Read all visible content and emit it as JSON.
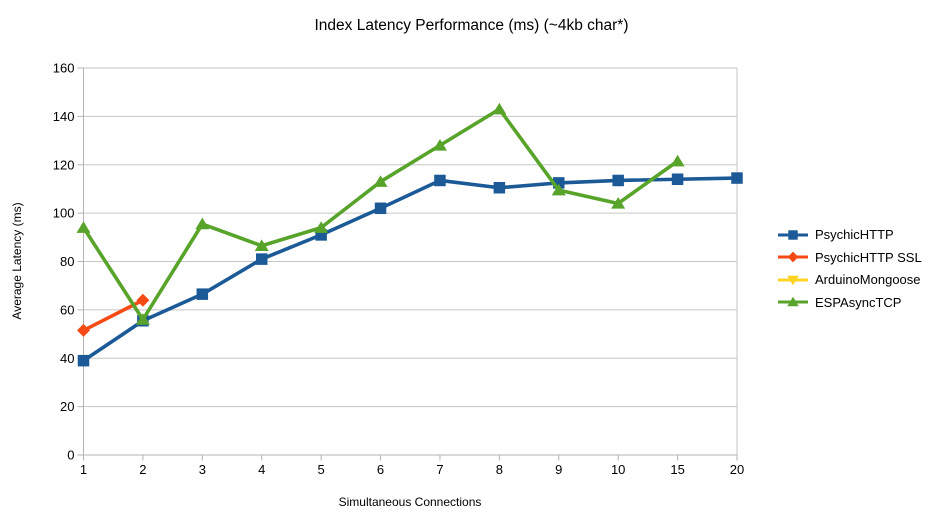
{
  "page": {
    "background": "#ffffff"
  },
  "chart_data": {
    "type": "line",
    "title": "Index Latency Performance (ms) (~4kb char*)",
    "xlabel": "Simultaneous Connections",
    "ylabel": "Average Latency (ms)",
    "categories": [
      "1",
      "2",
      "3",
      "4",
      "5",
      "6",
      "7",
      "8",
      "9",
      "10",
      "15",
      "20"
    ],
    "y_ticks": [
      0,
      20,
      40,
      60,
      80,
      100,
      120,
      140,
      160
    ],
    "ylim": [
      0,
      160
    ],
    "grid": "horizontal-only",
    "legend_position": "right",
    "series": [
      {
        "name": "PsychicHTTP",
        "color": "#1b5a97",
        "marker": "square",
        "values": [
          39,
          55.5,
          66.5,
          81,
          91,
          102,
          113.5,
          110.5,
          112.5,
          113.5,
          114,
          114.5
        ]
      },
      {
        "name": "PsychicHTTP SSL",
        "color": "#f64a14",
        "marker": "diamond",
        "values": [
          51.5,
          64,
          null,
          null,
          null,
          null,
          null,
          null,
          null,
          null,
          null,
          null
        ]
      },
      {
        "name": "ArduinoMongoose",
        "color": "#ffd322",
        "marker": "triangle-down",
        "values": [
          null,
          null,
          null,
          null,
          null,
          null,
          null,
          null,
          null,
          null,
          null,
          null
        ]
      },
      {
        "name": "ESPAsyncTCP",
        "color": "#58a32a",
        "marker": "triangle-up",
        "values": [
          94,
          56,
          95.5,
          86.5,
          94,
          113,
          128,
          143,
          109.5,
          104,
          121.5,
          null
        ]
      }
    ],
    "style": {
      "gridline_color": "#c6c6c6",
      "axis_color": "#b3b3b3",
      "text_color": "#000000",
      "line_width": 3.6
    }
  }
}
